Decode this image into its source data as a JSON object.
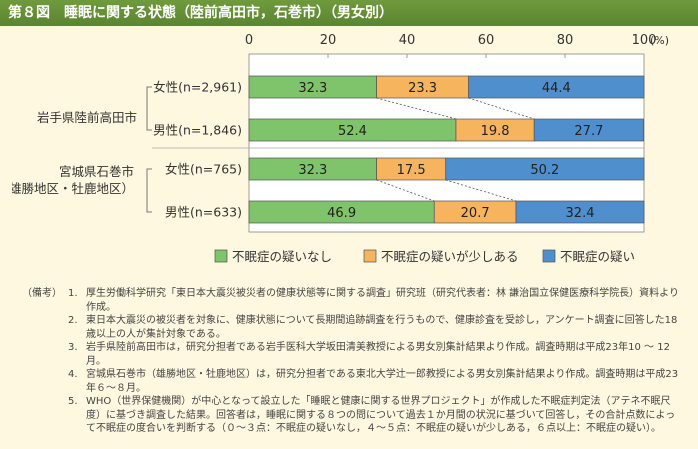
{
  "title": "第８図　睡眠に関する状態（陸前高田市，石巻市）（男女別）",
  "chart_data": {
    "type": "bar",
    "orientation": "horizontal",
    "stacked": true,
    "xlim": [
      0,
      100
    ],
    "x_ticks": [
      "0",
      "20",
      "40",
      "60",
      "80",
      "100"
    ],
    "x_unit": "(%)",
    "regions": [
      {
        "label": "岩手県陸前高田市",
        "label_lines": [
          "岩手県陸前高田市"
        ]
      },
      {
        "label": "宮城県石巻市（雄勝地区・牡鹿地区）",
        "label_lines": [
          "宮城県石巻市",
          "（雄勝地区・牡鹿地区）"
        ]
      }
    ],
    "categories": [
      "女性(n=2,961)",
      "男性(n=1,846)",
      "女性(n=765)",
      "男性(n=633)"
    ],
    "series": [
      {
        "name": "不眠症の疑いなし",
        "color": "#7fc36a",
        "values": [
          32.3,
          52.4,
          32.3,
          46.9
        ]
      },
      {
        "name": "不眠症の疑いが少しある",
        "color": "#f6b45e",
        "values": [
          23.3,
          19.8,
          17.5,
          20.7
        ]
      },
      {
        "name": "不眠症の疑い",
        "color": "#4f8fce",
        "values": [
          44.4,
          27.7,
          50.2,
          32.4
        ]
      }
    ],
    "value_labels": [
      [
        "32.3",
        "52.4",
        "32.3",
        "46.9"
      ],
      [
        "23.3",
        "19.8",
        "17.5",
        "20.7"
      ],
      [
        "44.4",
        "27.7",
        "50.2",
        "32.4"
      ]
    ],
    "legend_position": "bottom"
  },
  "notes": {
    "head": "（備考）",
    "items": [
      {
        "num": "1.",
        "text": "厚生労働科学研究「東日本大震災被災者の健康状態等に関する調査」研究班（研究代表者：林 謙治国立保健医療科学院長）資料より作成。"
      },
      {
        "num": "2.",
        "text": "東日本大震災の被災者を対象に、健康状態について長期間追跡調査を行うもので、健康診査を受診し，アンケート調査に回答した18歳以上の人が集計対象である。"
      },
      {
        "num": "3.",
        "text": "岩手県陸前高田市は，研究分担者である岩手医科大学坂田清美教授による男女別集計結果より作成。調査時期は平成23年10 ～ 12月。"
      },
      {
        "num": "4.",
        "text": "宮城県石巻市（雄勝地区・牡鹿地区）は，研究分担者である東北大学辻一郎教授による男女別集計結果より作成。調査時期は平成23年６～８月。"
      },
      {
        "num": "5.",
        "text": "WHO（世界保健機関）が中心となって設立した「睡眠と健康に関する世界プロジェクト」が作成した不眠症判定法（アテネ不眠尺度）に基づき調査した結果。回答者は，睡眠に関する８つの問について過去１か月間の状況に基づいて回答し，その合計点数によって不眠症の度合いを判断する（０～３点：不眠症の疑いなし，４～５点：不眠症の疑いが少しある，６点以上：不眠症の疑い）。"
      }
    ]
  }
}
